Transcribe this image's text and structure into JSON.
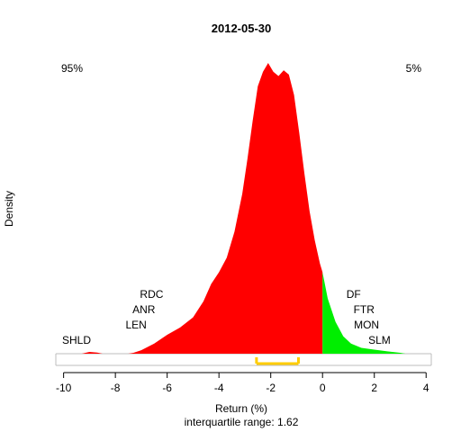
{
  "chart_data": {
    "type": "area",
    "title": "2012-05-30",
    "xlabel": "Return (%)",
    "ylabel": "Density",
    "subtitle": "interquartile range: 1.62",
    "xlim": [
      -10.3,
      4.2
    ],
    "ylim": [
      0,
      1
    ],
    "x_ticks": [
      -10,
      -8,
      -6,
      -4,
      -2,
      0,
      2,
      4
    ],
    "x_tick_labels": [
      "-10",
      "-8",
      "-6",
      "-4",
      "-2",
      "0",
      "2",
      "4"
    ],
    "grid": false,
    "left_percent_label": "95%",
    "right_percent_label": "5%",
    "split_at": 0,
    "colors": {
      "negative": "#ff0000",
      "positive": "#00ee00",
      "iqr": "#ffcc00",
      "baseline": "#bebebe"
    },
    "iqr_range": [
      -2.55,
      -0.93
    ],
    "density": {
      "x": [
        -9.3,
        -9.0,
        -8.7,
        -8.5,
        -8.0,
        -7.5,
        -7.3,
        -7.0,
        -6.5,
        -6.0,
        -5.5,
        -5.0,
        -4.6,
        -4.3,
        -4.0,
        -3.7,
        -3.4,
        -3.1,
        -2.9,
        -2.7,
        -2.5,
        -2.3,
        -2.1,
        -1.9,
        -1.7,
        -1.5,
        -1.3,
        -1.1,
        -0.9,
        -0.7,
        -0.5,
        -0.3,
        -0.1,
        0.0,
        0.2,
        0.5,
        0.8,
        1.1,
        1.5,
        2.0,
        2.5,
        3.0,
        3.2
      ],
      "y": [
        0.0,
        0.006,
        0.004,
        0.0,
        0.0,
        0.0,
        0.003,
        0.012,
        0.035,
        0.065,
        0.09,
        0.125,
        0.18,
        0.24,
        0.28,
        0.33,
        0.42,
        0.55,
        0.67,
        0.8,
        0.92,
        0.97,
        1.0,
        0.97,
        0.955,
        0.975,
        0.96,
        0.89,
        0.76,
        0.62,
        0.49,
        0.39,
        0.31,
        0.28,
        0.19,
        0.11,
        0.06,
        0.035,
        0.02,
        0.014,
        0.008,
        0.003,
        0.0
      ]
    },
    "tickers_left": [
      {
        "label": "RDC",
        "x": -6.6,
        "level": 4
      },
      {
        "label": "ANR",
        "x": -6.9,
        "level": 3
      },
      {
        "label": "LEN",
        "x": -7.2,
        "level": 2
      },
      {
        "label": "SHLD",
        "x": -9.5,
        "level": 1
      }
    ],
    "tickers_right": [
      {
        "label": "DF",
        "x": 1.2,
        "level": 4
      },
      {
        "label": "FTR",
        "x": 1.6,
        "level": 3
      },
      {
        "label": "MON",
        "x": 1.7,
        "level": 2
      },
      {
        "label": "SLM",
        "x": 2.2,
        "level": 1
      }
    ]
  }
}
